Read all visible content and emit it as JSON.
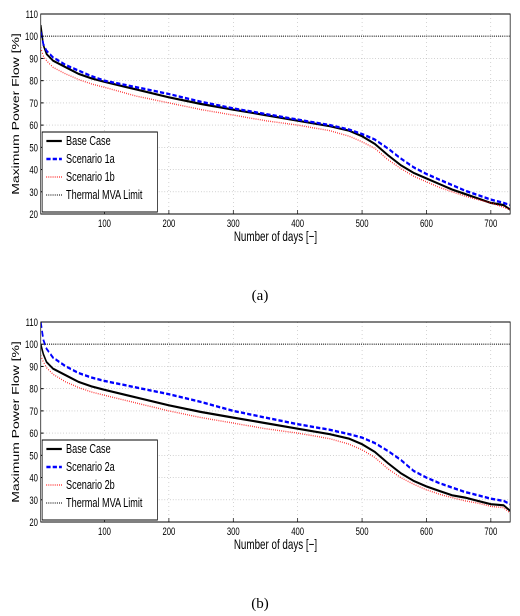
{
  "chart_data": [
    {
      "type": "line",
      "caption": "(a)",
      "xlabel": "Number of days [−]",
      "ylabel": "Maximum Power Flow [%]",
      "xlim": [
        1,
        730
      ],
      "ylim": [
        20,
        110
      ],
      "xticks": [
        100,
        200,
        300,
        400,
        500,
        600,
        700
      ],
      "yticks": [
        20,
        30,
        40,
        50,
        60,
        70,
        80,
        90,
        100,
        110
      ],
      "grid": true,
      "legend_position": "bottom-left",
      "series": [
        {
          "name": "Base Case",
          "color": "#000000",
          "style": "solid",
          "x": [
            1,
            5,
            10,
            20,
            40,
            60,
            80,
            100,
            150,
            200,
            250,
            300,
            350,
            400,
            450,
            480,
            500,
            520,
            540,
            560,
            580,
            600,
            620,
            640,
            660,
            680,
            700,
            720,
            730
          ],
          "y": [
            105,
            96,
            92,
            89,
            86,
            83,
            81,
            79.5,
            76,
            72.5,
            69.5,
            67,
            64.5,
            62,
            59.5,
            57.5,
            55,
            51.5,
            46.5,
            42,
            38.5,
            36,
            33.5,
            31,
            29,
            27,
            25,
            24,
            22
          ]
        },
        {
          "name": "Scenario 1a",
          "color": "#0000ff",
          "style": "dashed",
          "x": [
            1,
            5,
            10,
            20,
            40,
            60,
            80,
            100,
            150,
            200,
            250,
            300,
            350,
            400,
            450,
            480,
            500,
            520,
            540,
            560,
            580,
            600,
            620,
            640,
            660,
            680,
            700,
            720,
            730
          ],
          "y": [
            102,
            96.5,
            93.5,
            90.5,
            87,
            84.5,
            82,
            80,
            77,
            74,
            70.5,
            67.5,
            65,
            62.5,
            60,
            58,
            56,
            53.5,
            49.5,
            45,
            41,
            38,
            35.5,
            33,
            30.5,
            28.5,
            26.5,
            25,
            24
          ]
        },
        {
          "name": "Scenario 1b",
          "color": "#ff0000",
          "style": "dotted",
          "x": [
            1,
            5,
            10,
            20,
            40,
            60,
            80,
            100,
            150,
            200,
            250,
            300,
            350,
            400,
            450,
            480,
            500,
            520,
            540,
            560,
            580,
            600,
            620,
            640,
            660,
            680,
            700,
            720,
            730
          ],
          "y": [
            95,
            91,
            89,
            86,
            83,
            80.5,
            78.5,
            77,
            73,
            70,
            67,
            64.5,
            62,
            60,
            57.5,
            55,
            52.5,
            49.5,
            44.5,
            40.5,
            37,
            34.5,
            32,
            30,
            28,
            26.5,
            25,
            23,
            22
          ]
        },
        {
          "name": "Thermal MVA Limit",
          "color": "#000000",
          "style": "dotted",
          "x": [
            1,
            730
          ],
          "y": [
            100,
            100
          ]
        }
      ]
    },
    {
      "type": "line",
      "caption": "(b)",
      "xlabel": "Number of days [−]",
      "ylabel": "Maximum Power Flow [%]",
      "xlim": [
        1,
        730
      ],
      "ylim": [
        20,
        110
      ],
      "xticks": [
        100,
        200,
        300,
        400,
        500,
        600,
        700
      ],
      "yticks": [
        20,
        30,
        40,
        50,
        60,
        70,
        80,
        90,
        100,
        110
      ],
      "grid": true,
      "legend_position": "bottom-left",
      "series": [
        {
          "name": "Base Case",
          "color": "#000000",
          "style": "solid",
          "x": [
            1,
            5,
            10,
            20,
            40,
            60,
            80,
            100,
            150,
            200,
            250,
            300,
            350,
            400,
            450,
            480,
            500,
            520,
            540,
            560,
            580,
            600,
            620,
            640,
            660,
            680,
            700,
            720,
            730
          ],
          "y": [
            100,
            95.5,
            92,
            89,
            86,
            83,
            81,
            79.5,
            76,
            72.5,
            69.5,
            67,
            64.5,
            62,
            59.5,
            57.5,
            55,
            51.5,
            46.5,
            42,
            38.5,
            36,
            34,
            32,
            31,
            29.5,
            28,
            27.5,
            25
          ]
        },
        {
          "name": "Scenario 2a",
          "color": "#0000ff",
          "style": "dashed",
          "x": [
            1,
            5,
            10,
            20,
            40,
            60,
            80,
            100,
            150,
            200,
            250,
            300,
            350,
            400,
            450,
            480,
            500,
            520,
            540,
            560,
            580,
            600,
            620,
            640,
            660,
            680,
            700,
            720,
            730
          ],
          "y": [
            110,
            102,
            98,
            94,
            90,
            87,
            85,
            83.5,
            80.5,
            77.5,
            74,
            70,
            67,
            64,
            61.5,
            59.5,
            58,
            55.5,
            52,
            48,
            43,
            40,
            37.5,
            35.5,
            33.5,
            32,
            30.5,
            29.5,
            28
          ]
        },
        {
          "name": "Scenario 2b",
          "color": "#ff0000",
          "style": "dotted",
          "x": [
            1,
            5,
            10,
            20,
            40,
            60,
            80,
            100,
            150,
            200,
            250,
            300,
            350,
            400,
            450,
            480,
            500,
            520,
            540,
            560,
            580,
            600,
            620,
            640,
            660,
            680,
            700,
            720,
            730
          ],
          "y": [
            95,
            92,
            89.5,
            86.5,
            83,
            80.5,
            78.5,
            77,
            73.5,
            70,
            67,
            64.5,
            62,
            60,
            57.5,
            55,
            52.5,
            49,
            44,
            40,
            37,
            34.5,
            32.5,
            31,
            29.5,
            28.5,
            27,
            26.5,
            24
          ]
        },
        {
          "name": "Thermal MVA Limit",
          "color": "#000000",
          "style": "dotted",
          "x": [
            1,
            730
          ],
          "y": [
            100,
            100
          ]
        }
      ]
    }
  ]
}
